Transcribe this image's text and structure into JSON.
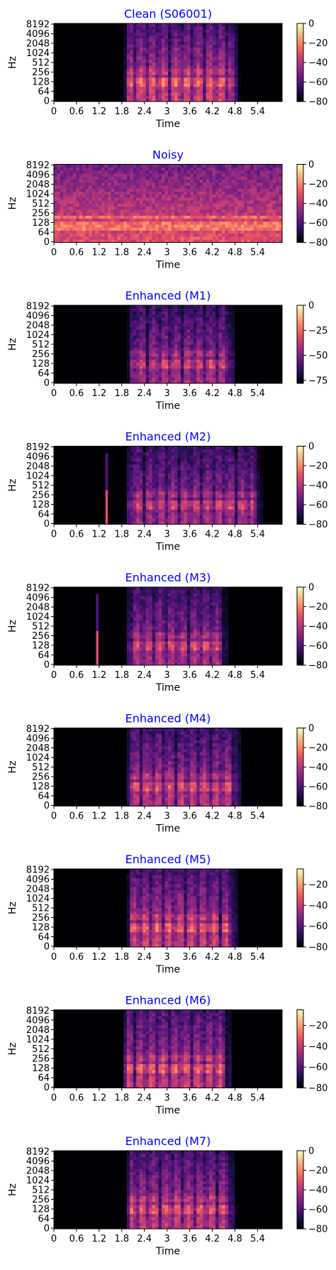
{
  "figure": {
    "colormap": "magma",
    "title_color": "#0000ff"
  },
  "chart_data": [
    {
      "type": "heatmap",
      "title": "Clean (S06001)",
      "xlabel": "Time",
      "ylabel": "Hz",
      "xticks": [
        "0",
        "0.6",
        "1.2",
        "1.8",
        "2.4",
        "3",
        "3.6",
        "4.2",
        "4.8",
        "5.4"
      ],
      "yticks": [
        "0",
        "64",
        "128",
        "256",
        "512",
        "1024",
        "2048",
        "4096",
        "8192"
      ],
      "colorbar_ticks": [
        0,
        -20,
        -40,
        -60,
        -80
      ],
      "colorbar_range": [
        -80,
        0
      ],
      "xlim": [
        0,
        6.05
      ],
      "speech_region": [
        1.85,
        4.95
      ],
      "speech_level": 0.62,
      "noise_level": 0.0,
      "burst_time": null
    },
    {
      "type": "heatmap",
      "title": "Noisy",
      "xlabel": "Time",
      "ylabel": "Hz",
      "xticks": [
        "0",
        "0.6",
        "1.2",
        "1.8",
        "2.4",
        "3",
        "3.6",
        "4.2",
        "4.8",
        "5.4"
      ],
      "yticks": [
        "0",
        "64",
        "128",
        "256",
        "512",
        "1024",
        "2048",
        "4096",
        "8192"
      ],
      "colorbar_ticks": [
        0,
        -20,
        -40,
        -60,
        -80
      ],
      "colorbar_range": [
        -80,
        0
      ],
      "xlim": [
        0,
        6.05
      ],
      "speech_region": [
        1.85,
        4.95
      ],
      "speech_level": 0.25,
      "noise_level": 0.62,
      "burst_time": null
    },
    {
      "type": "heatmap",
      "title": "Enhanced (M1)",
      "xlabel": "Time",
      "ylabel": "Hz",
      "xticks": [
        "0",
        "0.6",
        "1.2",
        "1.8",
        "2.4",
        "3",
        "3.6",
        "4.2",
        "4.8",
        "5.4"
      ],
      "yticks": [
        "0",
        "64",
        "128",
        "256",
        "512",
        "1024",
        "2048",
        "4096",
        "8192"
      ],
      "colorbar_ticks": [
        0,
        -25,
        -50,
        -75
      ],
      "colorbar_range": [
        -78,
        0
      ],
      "xlim": [
        0,
        6.05
      ],
      "speech_region": [
        1.95,
        4.85
      ],
      "speech_level": 0.5,
      "noise_level": 0.0,
      "burst_time": null
    },
    {
      "type": "heatmap",
      "title": "Enhanced (M2)",
      "xlabel": "Time",
      "ylabel": "Hz",
      "xticks": [
        "0",
        "0.6",
        "1.2",
        "1.8",
        "2.4",
        "3",
        "3.6",
        "4.2",
        "4.8",
        "5.4"
      ],
      "yticks": [
        "0",
        "64",
        "128",
        "256",
        "512",
        "1024",
        "2048",
        "4096",
        "8192"
      ],
      "colorbar_ticks": [
        0,
        -20,
        -40,
        -60,
        -80
      ],
      "colorbar_range": [
        -80,
        0
      ],
      "xlim": [
        0,
        6.05
      ],
      "speech_region": [
        1.9,
        5.55
      ],
      "speech_level": 0.5,
      "noise_level": 0.0,
      "burst_time": 1.4
    },
    {
      "type": "heatmap",
      "title": "Enhanced (M3)",
      "xlabel": "Time",
      "ylabel": "Hz",
      "xticks": [
        "0",
        "0.6",
        "1.2",
        "1.8",
        "2.4",
        "3",
        "3.6",
        "4.2",
        "4.8",
        "5.4"
      ],
      "yticks": [
        "0",
        "64",
        "128",
        "256",
        "512",
        "1024",
        "2048",
        "4096",
        "8192"
      ],
      "colorbar_ticks": [
        0,
        -20,
        -40,
        -60,
        -80
      ],
      "colorbar_range": [
        -80,
        0
      ],
      "xlim": [
        0,
        6.05
      ],
      "speech_region": [
        1.9,
        4.65
      ],
      "speech_level": 0.52,
      "noise_level": 0.0,
      "burst_time": 1.15
    },
    {
      "type": "heatmap",
      "title": "Enhanced (M4)",
      "xlabel": "Time",
      "ylabel": "Hz",
      "xticks": [
        "0",
        "0.6",
        "1.2",
        "1.8",
        "2.4",
        "3",
        "3.6",
        "4.2",
        "4.8",
        "5.4"
      ],
      "yticks": [
        "0",
        "64",
        "128",
        "256",
        "512",
        "1024",
        "2048",
        "4096",
        "8192"
      ],
      "colorbar_ticks": [
        0,
        -20,
        -40,
        -60,
        -80
      ],
      "colorbar_range": [
        -80,
        0
      ],
      "xlim": [
        0,
        6.05
      ],
      "speech_region": [
        1.9,
        5.0
      ],
      "speech_level": 0.55,
      "noise_level": 0.0,
      "burst_time": null
    },
    {
      "type": "heatmap",
      "title": "Enhanced (M5)",
      "xlabel": "Time",
      "ylabel": "Hz",
      "xticks": [
        "0",
        "0.6",
        "1.2",
        "1.8",
        "2.4",
        "3",
        "3.6",
        "4.2",
        "4.8",
        "5.4"
      ],
      "yticks": [
        "0",
        "64",
        "128",
        "256",
        "512",
        "1024",
        "2048",
        "4096",
        "8192"
      ],
      "colorbar_ticks": [
        -20,
        -40,
        -60,
        -80
      ],
      "colorbar_range": [
        -80,
        -5
      ],
      "xlim": [
        0,
        6.05
      ],
      "speech_region": [
        1.9,
        4.9
      ],
      "speech_level": 0.6,
      "noise_level": 0.0,
      "burst_time": null
    },
    {
      "type": "heatmap",
      "title": "Enhanced (M6)",
      "xlabel": "Time",
      "ylabel": "Hz",
      "xticks": [
        "0",
        "0.6",
        "1.2",
        "1.8",
        "2.4",
        "3",
        "3.6",
        "4.2",
        "4.8",
        "5.4"
      ],
      "yticks": [
        "0",
        "64",
        "128",
        "256",
        "512",
        "1024",
        "2048",
        "4096",
        "8192"
      ],
      "colorbar_ticks": [
        -20,
        -40,
        -60,
        -80
      ],
      "colorbar_range": [
        -80,
        -5
      ],
      "xlim": [
        0,
        6.05
      ],
      "speech_region": [
        1.8,
        4.75
      ],
      "speech_level": 0.6,
      "noise_level": 0.0,
      "burst_time": null
    },
    {
      "type": "heatmap",
      "title": "Enhanced (M7)",
      "xlabel": "Time",
      "ylabel": "Hz",
      "xticks": [
        "0",
        "0.6",
        "1.2",
        "1.8",
        "2.4",
        "3",
        "3.6",
        "4.2",
        "4.8",
        "5.4"
      ],
      "yticks": [
        "0",
        "64",
        "128",
        "256",
        "512",
        "1024",
        "2048",
        "4096",
        "8192"
      ],
      "colorbar_ticks": [
        0,
        -20,
        -40,
        -60,
        -80
      ],
      "colorbar_range": [
        -80,
        0
      ],
      "xlim": [
        0,
        6.05
      ],
      "speech_region": [
        1.9,
        4.85
      ],
      "speech_level": 0.58,
      "noise_level": 0.0,
      "burst_time": null
    }
  ]
}
